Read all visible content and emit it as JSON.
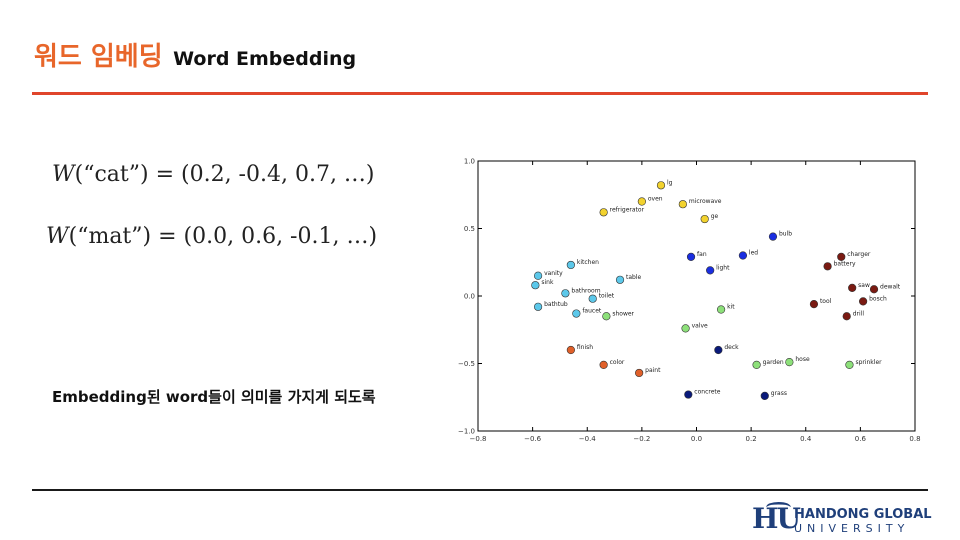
{
  "slide": {
    "title_ko": "워드 임베딩",
    "title_en": "Word Embedding",
    "eq1": {
      "w": "W",
      "arg": "(“cat”)",
      "rhs": " = (0.2, -0.4, 0.7, …)"
    },
    "eq2": {
      "w": "W",
      "arg": "(“mat”)",
      "rhs": " = (0.0, 0.6, -0.1, …)"
    },
    "caption": "Embedding된 word들이 의미를 가지게 되도록",
    "logo_mark": "H͡U",
    "logo_line1": "HANDONG GLOBAL",
    "logo_line2": "UNIVERSITY"
  },
  "colors": {
    "title_accent": "#e8662a",
    "rule_top": "#e0452b",
    "logo": "#1f3f7a"
  },
  "chart_data": {
    "type": "scatter",
    "xlim": [
      -0.8,
      0.8
    ],
    "ylim": [
      -1.0,
      1.0
    ],
    "xticks": [
      "-0.8",
      "-0.6",
      "-0.4",
      "-0.2",
      "0.0",
      "0.2",
      "0.4",
      "0.6",
      "0.8"
    ],
    "yticks": [
      "1.0",
      "0.5",
      "0.0",
      "-0.5",
      "-1.0"
    ],
    "grid": false,
    "points": [
      {
        "label": "lg",
        "x": -0.13,
        "y": 0.82,
        "color": "#f2d22e"
      },
      {
        "label": "oven",
        "x": -0.2,
        "y": 0.7,
        "color": "#f2d22e"
      },
      {
        "label": "microwave",
        "x": -0.05,
        "y": 0.68,
        "color": "#f2d22e"
      },
      {
        "label": "refrigerator",
        "x": -0.34,
        "y": 0.62,
        "color": "#f2d22e"
      },
      {
        "label": "ge",
        "x": 0.03,
        "y": 0.57,
        "color": "#f2d22e"
      },
      {
        "label": "bulb",
        "x": 0.28,
        "y": 0.44,
        "color": "#1a2ee0"
      },
      {
        "label": "led",
        "x": 0.17,
        "y": 0.3,
        "color": "#1a2ee0"
      },
      {
        "label": "fan",
        "x": -0.02,
        "y": 0.29,
        "color": "#1a2ee0"
      },
      {
        "label": "light",
        "x": 0.05,
        "y": 0.19,
        "color": "#1a2ee0"
      },
      {
        "label": "charger",
        "x": 0.53,
        "y": 0.29,
        "color": "#7a1a12"
      },
      {
        "label": "battery",
        "x": 0.48,
        "y": 0.22,
        "color": "#7a1a12"
      },
      {
        "label": "saw",
        "x": 0.57,
        "y": 0.06,
        "color": "#7a1a12"
      },
      {
        "label": "dewalt",
        "x": 0.65,
        "y": 0.05,
        "color": "#7a1a12"
      },
      {
        "label": "bosch",
        "x": 0.61,
        "y": -0.04,
        "color": "#7a1a12"
      },
      {
        "label": "tool",
        "x": 0.43,
        "y": -0.06,
        "color": "#7a1a12"
      },
      {
        "label": "drill",
        "x": 0.55,
        "y": -0.15,
        "color": "#7a1a12"
      },
      {
        "label": "kitchen",
        "x": -0.46,
        "y": 0.23,
        "color": "#5cc8ea"
      },
      {
        "label": "vanity",
        "x": -0.58,
        "y": 0.15,
        "color": "#5cc8ea"
      },
      {
        "label": "table",
        "x": -0.28,
        "y": 0.12,
        "color": "#5cc8ea"
      },
      {
        "label": "sink",
        "x": -0.59,
        "y": 0.08,
        "color": "#5cc8ea"
      },
      {
        "label": "bathroom",
        "x": -0.48,
        "y": 0.02,
        "color": "#5cc8ea"
      },
      {
        "label": "toilet",
        "x": -0.38,
        "y": -0.02,
        "color": "#5cc8ea"
      },
      {
        "label": "bathtub",
        "x": -0.58,
        "y": -0.08,
        "color": "#5cc8ea"
      },
      {
        "label": "faucet",
        "x": -0.44,
        "y": -0.13,
        "color": "#5cc8ea"
      },
      {
        "label": "shower",
        "x": -0.33,
        "y": -0.15,
        "color": "#8de07a"
      },
      {
        "label": "kit",
        "x": 0.09,
        "y": -0.1,
        "color": "#8de07a"
      },
      {
        "label": "valve",
        "x": -0.04,
        "y": -0.24,
        "color": "#8de07a"
      },
      {
        "label": "garden",
        "x": 0.22,
        "y": -0.51,
        "color": "#8de07a"
      },
      {
        "label": "hose",
        "x": 0.34,
        "y": -0.49,
        "color": "#8de07a"
      },
      {
        "label": "sprinkler",
        "x": 0.56,
        "y": -0.51,
        "color": "#8de07a"
      },
      {
        "label": "finish",
        "x": -0.46,
        "y": -0.4,
        "color": "#e0602a"
      },
      {
        "label": "color",
        "x": -0.34,
        "y": -0.51,
        "color": "#e0602a"
      },
      {
        "label": "paint",
        "x": -0.21,
        "y": -0.57,
        "color": "#e0602a"
      },
      {
        "label": "deck",
        "x": 0.08,
        "y": -0.4,
        "color": "#0a1a7a"
      },
      {
        "label": "concrete",
        "x": -0.03,
        "y": -0.73,
        "color": "#0a1a7a"
      },
      {
        "label": "grass",
        "x": 0.25,
        "y": -0.74,
        "color": "#0a1a7a"
      }
    ]
  }
}
